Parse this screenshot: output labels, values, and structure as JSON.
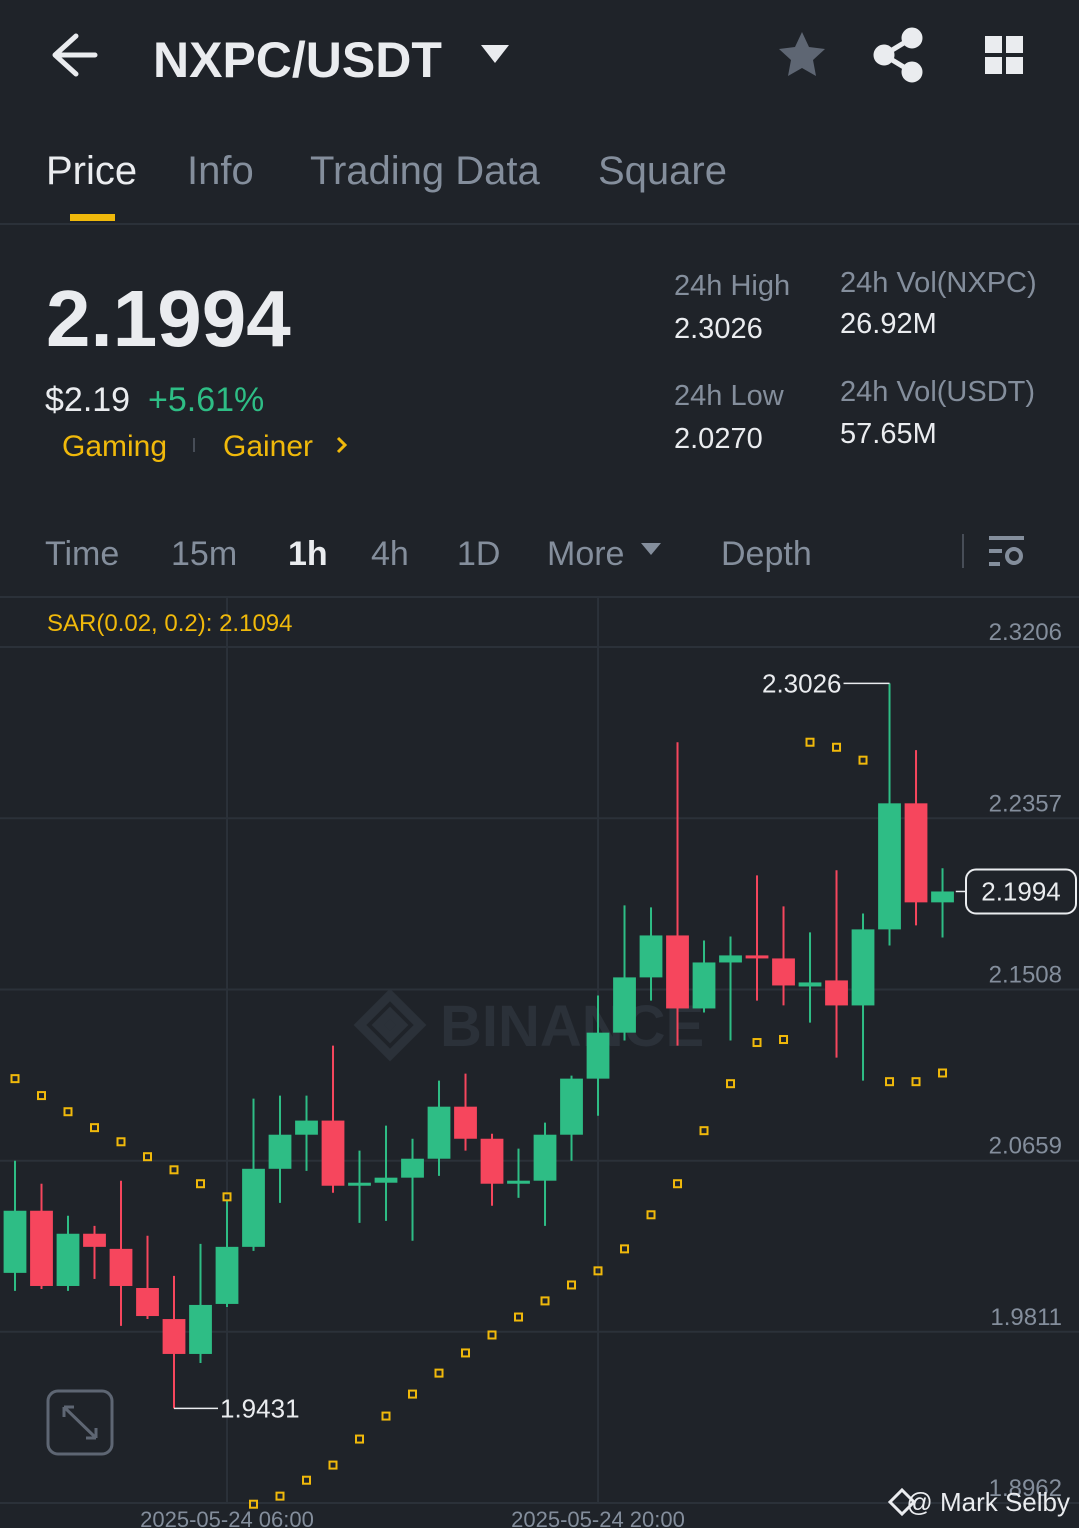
{
  "header": {
    "pair": "NXPC/USDT"
  },
  "tabs": [
    "Price",
    "Info",
    "Trading Data",
    "Square"
  ],
  "price": {
    "last": "2.1994",
    "usd": "$2.19",
    "change": "+5.61%",
    "tags": [
      "Gaming",
      "Gainer"
    ]
  },
  "stats": [
    {
      "label": "24h High",
      "value": "2.3026"
    },
    {
      "label": "24h Low",
      "value": "2.0270"
    },
    {
      "label": "24h Vol(NXPC)",
      "value": "26.92M"
    },
    {
      "label": "24h Vol(USDT)",
      "value": "57.65M"
    }
  ],
  "intervals": [
    "Time",
    "15m",
    "1h",
    "4h",
    "1D",
    "More",
    "Depth"
  ],
  "chart_data": {
    "type": "candlestick",
    "indicator_label": "SAR(0.02, 0.2): 2.1094",
    "up_color": "#2ebd85",
    "down_color": "#f6465d",
    "sar_color": "#f0b90b",
    "grid": true,
    "xlim": [
      -0.566,
      40.15
    ],
    "xticks": [
      {
        "value": 8,
        "label": "2025-05-24 06:00"
      },
      {
        "value": 22,
        "label": "2025-05-24 20:00"
      }
    ],
    "ylim": [
      1.8962,
      2.3454
    ],
    "yticks": [
      2.3206,
      2.2357,
      2.1508,
      2.0659,
      1.9811,
      1.8962
    ],
    "open": [
      2.0103,
      2.0411,
      2.0038,
      2.0297,
      2.0222,
      2.0028,
      1.9874,
      1.9701,
      1.9949,
      2.0232,
      2.0619,
      2.0788,
      2.0858,
      2.0535,
      2.055,
      2.0575,
      2.0669,
      2.0927,
      2.0768,
      2.0545,
      2.056,
      2.0788,
      2.1066,
      2.1294,
      2.1568,
      2.1776,
      2.1414,
      2.1642,
      2.1677,
      2.1662,
      2.1523,
      2.1553,
      2.1429,
      2.1806,
      2.2431,
      2.194
    ],
    "high": [
      2.0659,
      2.0545,
      2.0386,
      2.0336,
      2.056,
      2.0287,
      2.0088,
      2.0247,
      2.046,
      2.0967,
      2.0982,
      2.0982,
      2.123,
      2.0709,
      2.0833,
      2.0768,
      2.1056,
      2.1091,
      2.0793,
      2.0719,
      2.0848,
      2.1081,
      2.1478,
      2.1925,
      2.1915,
      2.2734,
      2.1751,
      2.1771,
      2.2074,
      2.192,
      2.1791,
      2.2099,
      2.1885,
      2.3026,
      2.2695,
      2.2109
    ],
    "low": [
      2.0014,
      2.0023,
      2.0014,
      2.0073,
      1.984,
      1.9874,
      1.9431,
      1.9656,
      1.9934,
      2.0212,
      2.045,
      2.0609,
      2.05,
      2.0351,
      2.0361,
      2.0262,
      2.0584,
      2.0709,
      2.0436,
      2.0475,
      2.0336,
      2.0659,
      2.0882,
      2.1255,
      2.1453,
      2.123,
      2.1394,
      2.1255,
      2.1453,
      2.1429,
      2.1344,
      2.117,
      2.1056,
      2.1726,
      2.1826,
      2.1766
    ],
    "close": [
      2.0411,
      2.0038,
      2.0297,
      2.0232,
      2.0038,
      1.9889,
      1.9701,
      1.9944,
      2.0232,
      2.0619,
      2.0788,
      2.0858,
      2.0535,
      2.055,
      2.0575,
      2.0669,
      2.0927,
      2.0768,
      2.0545,
      2.056,
      2.0788,
      2.1066,
      2.1294,
      2.1568,
      2.1776,
      2.1414,
      2.1642,
      2.1677,
      2.1662,
      2.1528,
      2.1543,
      2.1429,
      2.1806,
      2.2431,
      2.194,
      2.1994
    ],
    "sar": [
      2.1066,
      2.0982,
      2.0902,
      2.0823,
      2.0753,
      2.0679,
      2.0614,
      2.0545,
      2.048,
      1.8956,
      1.8996,
      1.9075,
      1.915,
      1.9279,
      1.9393,
      1.9502,
      1.9606,
      1.9706,
      1.9795,
      1.9884,
      1.9964,
      2.0043,
      2.0113,
      2.0222,
      2.0391,
      2.0545,
      2.0808,
      2.1041,
      2.1245,
      2.126,
      2.2734,
      2.2709,
      2.2645,
      2.1051,
      2.1051,
      2.1094
    ]
  },
  "watermark": "BINANCE",
  "credit": "@ Mark Selby"
}
